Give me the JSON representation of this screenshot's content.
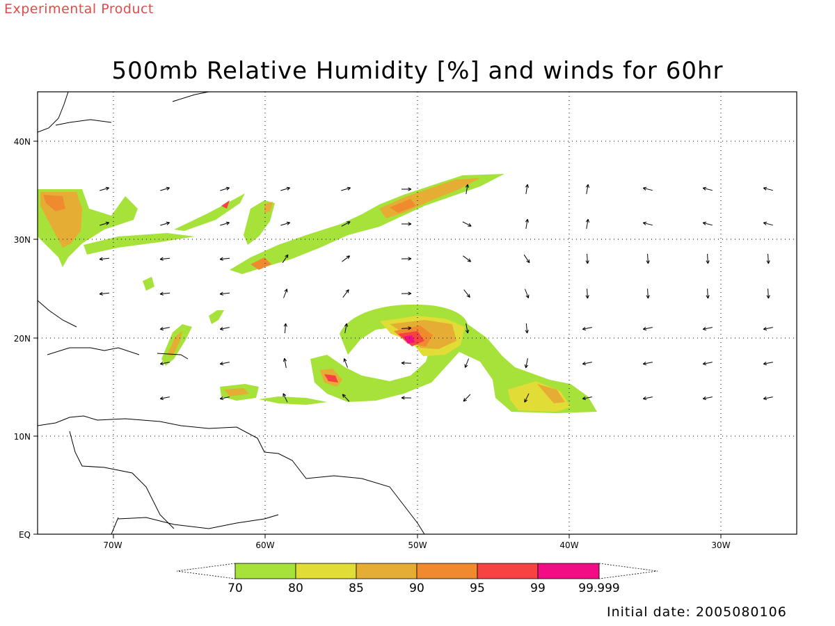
{
  "header": {
    "experimental_label": "Experimental Product",
    "title": "500mb Relative Humidity [%] and winds for 60hr",
    "initial_date": "Initial date: 2005080106"
  },
  "map": {
    "lon_range": [
      -75,
      -25
    ],
    "lat_range": [
      0,
      45
    ],
    "grid": "dotted",
    "lat_ticks": [
      {
        "value": 0,
        "label": "EQ"
      },
      {
        "value": 10,
        "label": "10N"
      },
      {
        "value": 20,
        "label": "20N"
      },
      {
        "value": 30,
        "label": "30N"
      },
      {
        "value": 40,
        "label": "40N"
      }
    ],
    "lon_ticks": [
      {
        "value": -70,
        "label": "70W"
      },
      {
        "value": -60,
        "label": "60W"
      },
      {
        "value": -50,
        "label": "50W"
      },
      {
        "value": -40,
        "label": "40W"
      },
      {
        "value": -30,
        "label": "30W"
      }
    ]
  },
  "colorbar": {
    "labels": [
      "70",
      "80",
      "85",
      "90",
      "95",
      "99",
      "99.999"
    ],
    "colors": [
      "#a6e23a",
      "#e2dc36",
      "#e6ad34",
      "#f08a2e",
      "#f64242",
      "#f20d84"
    ]
  }
}
